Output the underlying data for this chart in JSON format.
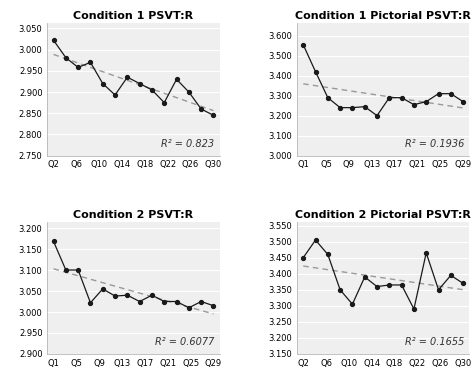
{
  "panels": [
    {
      "title": "Condition 1 PSVT:R",
      "xlabels": [
        "Q2",
        "Q6",
        "Q10",
        "Q14",
        "Q18",
        "Q22",
        "Q26",
        "Q30"
      ],
      "y": [
        3.022,
        2.981,
        2.958,
        2.97,
        2.92,
        2.893,
        2.935,
        2.92,
        2.905,
        2.875,
        2.93,
        2.9,
        2.86,
        2.845
      ],
      "ylim": [
        2.75,
        3.062
      ],
      "yticks": [
        2.75,
        2.8,
        2.85,
        2.9,
        2.95,
        3.0,
        3.05
      ],
      "r2": "R² = 0.823",
      "n_points": 14
    },
    {
      "title": "Condition 1 Pictorial PSVT:R",
      "xlabels": [
        "Q1",
        "Q5",
        "Q9",
        "Q13",
        "Q17",
        "Q21",
        "Q25",
        "Q29"
      ],
      "y": [
        3.555,
        3.42,
        3.29,
        3.24,
        3.24,
        3.245,
        3.2,
        3.29,
        3.29,
        3.255,
        3.27,
        3.31,
        3.31,
        3.27
      ],
      "ylim": [
        3.0,
        3.662
      ],
      "yticks": [
        3.0,
        3.1,
        3.2,
        3.3,
        3.4,
        3.5,
        3.6
      ],
      "r2": "R² = 0.1936",
      "n_points": 14
    },
    {
      "title": "Condition 2 PSVT:R",
      "xlabels": [
        "Q1",
        "Q5",
        "Q9",
        "Q13",
        "Q17",
        "Q21",
        "Q25",
        "Q29"
      ],
      "y": [
        3.168,
        3.1,
        3.1,
        3.022,
        3.055,
        3.038,
        3.04,
        3.025,
        3.04,
        3.025,
        3.025,
        3.01,
        3.025,
        3.015
      ],
      "ylim": [
        2.9,
        3.215
      ],
      "yticks": [
        2.9,
        2.95,
        3.0,
        3.05,
        3.1,
        3.15,
        3.2
      ],
      "r2": "R² = 0.6077",
      "n_points": 14
    },
    {
      "title": "Condition 2 Pictorial PSVT:R",
      "xlabels": [
        "Q2",
        "Q6",
        "Q10",
        "Q14",
        "Q18",
        "Q22",
        "Q26",
        "Q30"
      ],
      "y": [
        3.45,
        3.505,
        3.46,
        3.35,
        3.305,
        3.39,
        3.36,
        3.365,
        3.365,
        3.29,
        3.465,
        3.35,
        3.395,
        3.37
      ],
      "ylim": [
        3.15,
        3.562
      ],
      "yticks": [
        3.15,
        3.2,
        3.25,
        3.3,
        3.35,
        3.4,
        3.45,
        3.5,
        3.55
      ],
      "r2": "R² = 0.1655",
      "n_points": 14
    }
  ],
  "line_color": "#1a1a1a",
  "trendline_color": "#999999",
  "bg_color": "#ffffff",
  "plot_bg_color": "#efefef",
  "title_fontsize": 8,
  "tick_fontsize": 6,
  "annot_fontsize": 7
}
